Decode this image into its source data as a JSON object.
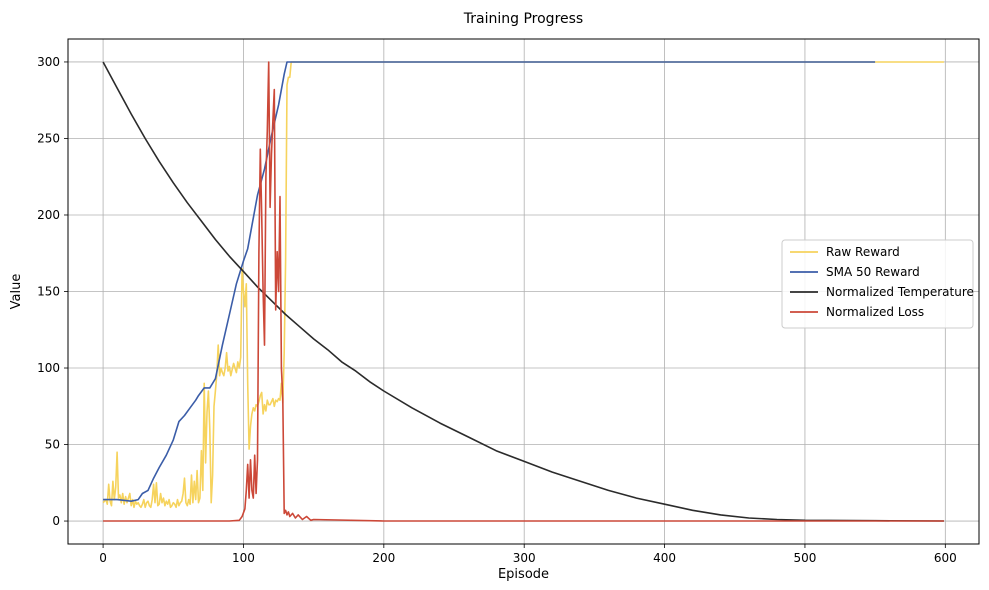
{
  "chart_data": {
    "type": "line",
    "title": "Training Progress",
    "xlabel": "Episode",
    "ylabel": "Value",
    "xlim": [
      -25,
      624
    ],
    "ylim": [
      -15,
      315
    ],
    "xticks": [
      0,
      100,
      200,
      300,
      400,
      500,
      600
    ],
    "yticks": [
      0,
      50,
      100,
      150,
      200,
      250,
      300
    ],
    "grid": true,
    "legend_position": "center-right",
    "series": [
      {
        "name": "Raw Reward",
        "color": "#f6d35d",
        "points": [
          [
            0,
            12
          ],
          [
            2,
            14
          ],
          [
            3,
            11
          ],
          [
            4,
            24
          ],
          [
            5,
            13
          ],
          [
            6,
            10
          ],
          [
            7,
            26
          ],
          [
            8,
            14
          ],
          [
            9,
            22
          ],
          [
            10,
            45
          ],
          [
            11,
            15
          ],
          [
            12,
            17
          ],
          [
            13,
            12
          ],
          [
            14,
            18
          ],
          [
            15,
            11
          ],
          [
            16,
            16
          ],
          [
            17,
            12
          ],
          [
            18,
            15
          ],
          [
            19,
            18
          ],
          [
            20,
            10
          ],
          [
            21,
            14
          ],
          [
            22,
            9
          ],
          [
            23,
            13
          ],
          [
            24,
            11
          ],
          [
            25,
            12
          ],
          [
            26,
            10
          ],
          [
            27,
            9
          ],
          [
            28,
            11
          ],
          [
            29,
            14
          ],
          [
            30,
            9
          ],
          [
            31,
            12
          ],
          [
            32,
            13
          ],
          [
            33,
            10
          ],
          [
            34,
            9
          ],
          [
            35,
            14
          ],
          [
            36,
            24
          ],
          [
            37,
            12
          ],
          [
            38,
            25
          ],
          [
            39,
            10
          ],
          [
            40,
            11
          ],
          [
            41,
            18
          ],
          [
            42,
            12
          ],
          [
            43,
            15
          ],
          [
            44,
            10
          ],
          [
            45,
            13
          ],
          [
            46,
            11
          ],
          [
            47,
            14
          ],
          [
            48,
            9
          ],
          [
            49,
            10
          ],
          [
            50,
            12
          ],
          [
            51,
            11
          ],
          [
            52,
            9
          ],
          [
            53,
            14
          ],
          [
            54,
            10
          ],
          [
            55,
            12
          ],
          [
            56,
            13
          ],
          [
            57,
            18
          ],
          [
            58,
            28
          ],
          [
            59,
            12
          ],
          [
            60,
            10
          ],
          [
            61,
            14
          ],
          [
            62,
            11
          ],
          [
            63,
            30
          ],
          [
            64,
            12
          ],
          [
            65,
            26
          ],
          [
            66,
            14
          ],
          [
            67,
            33
          ],
          [
            68,
            12
          ],
          [
            69,
            15
          ],
          [
            70,
            46
          ],
          [
            71,
            20
          ],
          [
            72,
            90
          ],
          [
            73,
            38
          ],
          [
            74,
            71
          ],
          [
            75,
            85
          ],
          [
            76,
            60
          ],
          [
            77,
            12
          ],
          [
            78,
            30
          ],
          [
            79,
            75
          ],
          [
            80,
            85
          ],
          [
            81,
            96
          ],
          [
            82,
            115
          ],
          [
            83,
            95
          ],
          [
            84,
            100
          ],
          [
            85,
            97
          ],
          [
            86,
            95
          ],
          [
            87,
            100
          ],
          [
            88,
            110
          ],
          [
            89,
            98
          ],
          [
            90,
            101
          ],
          [
            91,
            95
          ],
          [
            92,
            99
          ],
          [
            93,
            103
          ],
          [
            94,
            100
          ],
          [
            95,
            97
          ],
          [
            96,
            104
          ],
          [
            97,
            100
          ],
          [
            98,
            107
          ],
          [
            99,
            165
          ],
          [
            100,
            150
          ],
          [
            101,
            140
          ],
          [
            102,
            155
          ],
          [
            103,
            90
          ],
          [
            104,
            47
          ],
          [
            105,
            62
          ],
          [
            106,
            70
          ],
          [
            107,
            74
          ],
          [
            108,
            72
          ],
          [
            109,
            76
          ],
          [
            110,
            75
          ],
          [
            111,
            78
          ],
          [
            112,
            82
          ],
          [
            113,
            84
          ],
          [
            114,
            70
          ],
          [
            115,
            76
          ],
          [
            116,
            72
          ],
          [
            117,
            79
          ],
          [
            118,
            76
          ],
          [
            119,
            76
          ],
          [
            120,
            78
          ],
          [
            121,
            80
          ],
          [
            122,
            75
          ],
          [
            123,
            79
          ],
          [
            124,
            78
          ],
          [
            125,
            80
          ],
          [
            126,
            79
          ],
          [
            127,
            90
          ],
          [
            128,
            77
          ],
          [
            129,
            110
          ],
          [
            130,
            170
          ],
          [
            131,
            285
          ],
          [
            132,
            290
          ],
          [
            133,
            290
          ],
          [
            134,
            300
          ],
          [
            140,
            300
          ],
          [
            200,
            300
          ],
          [
            300,
            300
          ],
          [
            400,
            300
          ],
          [
            500,
            300
          ],
          [
            599,
            300
          ]
        ]
      },
      {
        "name": "SMA 50 Reward",
        "color": "#3b5da8",
        "points": [
          [
            0,
            14
          ],
          [
            10,
            14
          ],
          [
            20,
            13
          ],
          [
            25,
            14
          ],
          [
            28,
            18
          ],
          [
            32,
            20
          ],
          [
            36,
            28
          ],
          [
            40,
            35
          ],
          [
            45,
            43
          ],
          [
            50,
            53
          ],
          [
            54,
            65
          ],
          [
            58,
            69
          ],
          [
            62,
            74
          ],
          [
            66,
            79
          ],
          [
            68,
            82
          ],
          [
            72,
            87
          ],
          [
            76,
            87
          ],
          [
            80,
            93
          ],
          [
            85,
            115
          ],
          [
            90,
            135
          ],
          [
            95,
            155
          ],
          [
            100,
            170
          ],
          [
            103,
            178
          ],
          [
            106,
            193
          ],
          [
            110,
            213
          ],
          [
            115,
            230
          ],
          [
            120,
            252
          ],
          [
            125,
            272
          ],
          [
            129,
            292
          ],
          [
            131,
            300
          ],
          [
            140,
            300
          ],
          [
            200,
            300
          ],
          [
            300,
            300
          ],
          [
            400,
            300
          ],
          [
            500,
            300
          ],
          [
            550,
            300
          ]
        ]
      },
      {
        "name": "Normalized Temperature",
        "color": "#2b2b2b",
        "points": [
          [
            0,
            300
          ],
          [
            10,
            283
          ],
          [
            20,
            266
          ],
          [
            30,
            250
          ],
          [
            40,
            235
          ],
          [
            50,
            221
          ],
          [
            60,
            208
          ],
          [
            70,
            196
          ],
          [
            80,
            184
          ],
          [
            90,
            173
          ],
          [
            100,
            163
          ],
          [
            110,
            153
          ],
          [
            120,
            144
          ],
          [
            130,
            135
          ],
          [
            140,
            127
          ],
          [
            150,
            119
          ],
          [
            160,
            112
          ],
          [
            170,
            104
          ],
          [
            180,
            98
          ],
          [
            190,
            91
          ],
          [
            200,
            85
          ],
          [
            220,
            74
          ],
          [
            240,
            64
          ],
          [
            260,
            55
          ],
          [
            280,
            46
          ],
          [
            300,
            39
          ],
          [
            320,
            32
          ],
          [
            340,
            26
          ],
          [
            360,
            20
          ],
          [
            380,
            15
          ],
          [
            400,
            11
          ],
          [
            420,
            7
          ],
          [
            440,
            4
          ],
          [
            460,
            2
          ],
          [
            480,
            1
          ],
          [
            500,
            0.5
          ],
          [
            550,
            0.2
          ],
          [
            599,
            0
          ]
        ]
      },
      {
        "name": "Normalized Loss",
        "color": "#cc4838",
        "points": [
          [
            0,
            0
          ],
          [
            90,
            0
          ],
          [
            97,
            0.5
          ],
          [
            99,
            3
          ],
          [
            101,
            8
          ],
          [
            102,
            20
          ],
          [
            103,
            37
          ],
          [
            104,
            15
          ],
          [
            105,
            40
          ],
          [
            106,
            20
          ],
          [
            107,
            15
          ],
          [
            108,
            43
          ],
          [
            109,
            18
          ],
          [
            110,
            40
          ],
          [
            111,
            175
          ],
          [
            112,
            243
          ],
          [
            113,
            200
          ],
          [
            114,
            150
          ],
          [
            115,
            115
          ],
          [
            116,
            225
          ],
          [
            117,
            255
          ],
          [
            118,
            300
          ],
          [
            119,
            205
          ],
          [
            120,
            240
          ],
          [
            121,
            262
          ],
          [
            122,
            282
          ],
          [
            123,
            138
          ],
          [
            124,
            176
          ],
          [
            125,
            150
          ],
          [
            126,
            212
          ],
          [
            127,
            100
          ],
          [
            128,
            80
          ],
          [
            129,
            5
          ],
          [
            130,
            7
          ],
          [
            131,
            4
          ],
          [
            132,
            6
          ],
          [
            133,
            3
          ],
          [
            135,
            5
          ],
          [
            137,
            2
          ],
          [
            139,
            4
          ],
          [
            142,
            1
          ],
          [
            145,
            3
          ],
          [
            148,
            0.5
          ],
          [
            150,
            1
          ],
          [
            200,
            0
          ],
          [
            300,
            0
          ],
          [
            400,
            0
          ],
          [
            500,
            0
          ],
          [
            599,
            0
          ]
        ]
      }
    ]
  }
}
